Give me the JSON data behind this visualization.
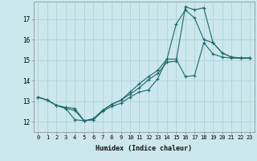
{
  "xlabel": "Humidex (Indice chaleur)",
  "background_color": "#cce8ec",
  "grid_color": "#aacdd4",
  "line_color": "#1a6b6b",
  "xlim": [
    -0.5,
    23.5
  ],
  "ylim": [
    11.5,
    17.85
  ],
  "yticks": [
    12,
    13,
    14,
    15,
    16,
    17
  ],
  "xticks": [
    0,
    1,
    2,
    3,
    4,
    5,
    6,
    7,
    8,
    9,
    10,
    11,
    12,
    13,
    14,
    15,
    16,
    17,
    18,
    19,
    20,
    21,
    22,
    23
  ],
  "series": {
    "line1_x": [
      0,
      1,
      2,
      3,
      4,
      5,
      6,
      7,
      8,
      9,
      10,
      11,
      12,
      13,
      14,
      15,
      16,
      17,
      18,
      19,
      20,
      21,
      22,
      23
    ],
    "line1_y": [
      13.2,
      13.05,
      12.8,
      12.65,
      12.55,
      12.05,
      12.1,
      12.5,
      12.75,
      12.9,
      13.2,
      13.45,
      13.55,
      14.1,
      15.05,
      15.05,
      14.2,
      14.25,
      15.85,
      15.3,
      15.15,
      15.1,
      15.1,
      15.1
    ],
    "line2_x": [
      0,
      1,
      2,
      3,
      4,
      5,
      6,
      7,
      8,
      9,
      10,
      11,
      12,
      13,
      14,
      15,
      16,
      17,
      18,
      19,
      20,
      21,
      22,
      23
    ],
    "line2_y": [
      13.2,
      13.05,
      12.8,
      12.65,
      12.1,
      12.05,
      12.15,
      12.55,
      12.85,
      13.05,
      13.45,
      13.85,
      14.2,
      14.5,
      15.05,
      16.75,
      17.45,
      17.05,
      16.0,
      15.85,
      15.35,
      15.15,
      15.1,
      15.1
    ],
    "line3_x": [
      0,
      1,
      2,
      3,
      4,
      5,
      6,
      7,
      8,
      9,
      10,
      11,
      12,
      13,
      14,
      15,
      16,
      17,
      18,
      19,
      20,
      21,
      22,
      23
    ],
    "line3_y": [
      13.2,
      13.05,
      12.8,
      12.7,
      12.65,
      12.05,
      12.1,
      12.55,
      12.85,
      13.05,
      13.35,
      13.65,
      14.05,
      14.35,
      14.9,
      14.95,
      17.6,
      17.45,
      17.55,
      15.85,
      15.35,
      15.15,
      15.1,
      15.1
    ]
  }
}
